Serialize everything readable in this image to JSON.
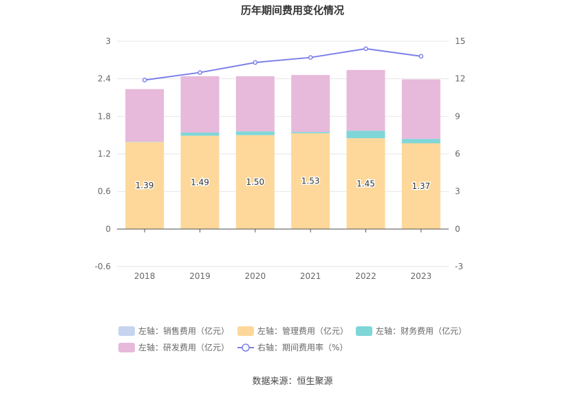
{
  "chart_data": {
    "type": "bar",
    "title": "历年期间费用变化情况",
    "categories": [
      "2018",
      "2019",
      "2020",
      "2021",
      "2022",
      "2023"
    ],
    "y_left": {
      "ticks": [
        "-0.6",
        "0",
        "0.6",
        "1.2",
        "1.8",
        "2.4",
        "3"
      ],
      "ylim": [
        -0.6,
        3
      ]
    },
    "y_right": {
      "ticks": [
        "-3",
        "0",
        "3",
        "6",
        "9",
        "12",
        "15"
      ],
      "ylim": [
        -3,
        15
      ]
    },
    "series": [
      {
        "name": "左轴：销售费用（亿元）",
        "axis": "left",
        "kind": "bar",
        "color": "#c5d5ee",
        "values": [
          0,
          0,
          0,
          0,
          0,
          0
        ]
      },
      {
        "name": "左轴：管理费用（亿元）",
        "axis": "left",
        "kind": "bar",
        "color": "#fdd89a",
        "values": [
          1.39,
          1.49,
          1.5,
          1.53,
          1.45,
          1.37
        ],
        "labels": [
          "1.39",
          "1.49",
          "1.50",
          "1.53",
          "1.45",
          "1.37"
        ]
      },
      {
        "name": "左轴：财务费用（亿元）",
        "axis": "left",
        "kind": "bar",
        "color": "#7fd6d8",
        "values": [
          0.005,
          0.05,
          0.06,
          0.02,
          0.12,
          0.07
        ]
      },
      {
        "name": "左轴：研发费用（亿元）",
        "axis": "left",
        "kind": "bar",
        "color": "#e7b9da",
        "values": [
          0.84,
          0.9,
          0.88,
          0.91,
          0.97,
          0.95
        ]
      },
      {
        "name": "右轴：期间费用率（%）",
        "axis": "right",
        "kind": "line",
        "color": "#7b7fe8",
        "values": [
          11.9,
          12.5,
          13.3,
          13.7,
          14.4,
          13.8
        ]
      }
    ],
    "legend_position": "bottom",
    "grid": true
  },
  "source_text": "数据来源：恒生聚源"
}
